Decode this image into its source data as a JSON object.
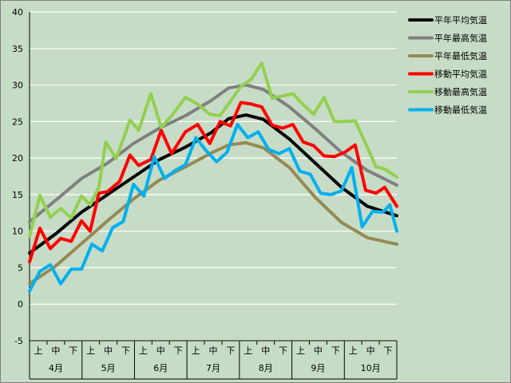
{
  "chart_data": {
    "type": "line",
    "title": "",
    "xlabel": "",
    "ylabel": "",
    "ylim": [
      -5,
      40
    ],
    "yticks": [
      -5,
      0,
      5,
      10,
      15,
      20,
      25,
      30,
      35,
      40
    ],
    "grid": "horizontal white gridlines",
    "legend_position": "right",
    "months": [
      "4月",
      "5月",
      "6月",
      "7月",
      "8月",
      "9月",
      "10月"
    ],
    "decades": [
      "上",
      "中",
      "下"
    ],
    "x_note": "x = day index from Apr 1 (0..212)",
    "series": [
      {
        "name": "平年平均気温",
        "color": "#000000",
        "points": [
          [
            0,
            7.0
          ],
          [
            15,
            9.6
          ],
          [
            30,
            12.6
          ],
          [
            45,
            15.0
          ],
          [
            60,
            17.4
          ],
          [
            75,
            19.8
          ],
          [
            90,
            21.5
          ],
          [
            105,
            23.5
          ],
          [
            115,
            25.4
          ],
          [
            125,
            25.9
          ],
          [
            135,
            25.3
          ],
          [
            150,
            22.6
          ],
          [
            165,
            19.3
          ],
          [
            180,
            16.0
          ],
          [
            195,
            13.4
          ],
          [
            212,
            12.1
          ]
        ]
      },
      {
        "name": "平年最高気温",
        "color": "#808080",
        "points": [
          [
            0,
            11.3
          ],
          [
            15,
            14.2
          ],
          [
            30,
            17.2
          ],
          [
            45,
            19.3
          ],
          [
            60,
            22.0
          ],
          [
            75,
            24.1
          ],
          [
            90,
            25.8
          ],
          [
            105,
            27.9
          ],
          [
            115,
            29.6
          ],
          [
            125,
            30.0
          ],
          [
            135,
            29.4
          ],
          [
            150,
            27.0
          ],
          [
            165,
            24.0
          ],
          [
            180,
            20.8
          ],
          [
            195,
            18.3
          ],
          [
            212,
            16.3
          ]
        ]
      },
      {
        "name": "平年最低気温",
        "color": "#948a54",
        "points": [
          [
            0,
            2.8
          ],
          [
            15,
            5.2
          ],
          [
            30,
            8.3
          ],
          [
            45,
            11.4
          ],
          [
            60,
            14.4
          ],
          [
            75,
            17.0
          ],
          [
            90,
            18.8
          ],
          [
            105,
            20.7
          ],
          [
            115,
            21.8
          ],
          [
            125,
            22.1
          ],
          [
            135,
            21.4
          ],
          [
            150,
            18.7
          ],
          [
            165,
            14.6
          ],
          [
            180,
            11.2
          ],
          [
            195,
            9.1
          ],
          [
            212,
            8.2
          ]
        ]
      },
      {
        "name": "移動平均気温",
        "color": "#ff0000",
        "points": [
          [
            0,
            5.8
          ],
          [
            6,
            10.4
          ],
          [
            12,
            7.6
          ],
          [
            18,
            9.0
          ],
          [
            24,
            8.6
          ],
          [
            30,
            11.4
          ],
          [
            35,
            10.0
          ],
          [
            40,
            15.2
          ],
          [
            45,
            15.4
          ],
          [
            52,
            16.8
          ],
          [
            58,
            20.4
          ],
          [
            63,
            19.0
          ],
          [
            70,
            19.8
          ],
          [
            76,
            23.8
          ],
          [
            82,
            20.6
          ],
          [
            90,
            23.6
          ],
          [
            97,
            24.6
          ],
          [
            104,
            22.0
          ],
          [
            110,
            25.0
          ],
          [
            116,
            24.4
          ],
          [
            122,
            27.6
          ],
          [
            128,
            27.4
          ],
          [
            134,
            27.0
          ],
          [
            140,
            24.5
          ],
          [
            146,
            24.1
          ],
          [
            152,
            24.6
          ],
          [
            158,
            22.2
          ],
          [
            164,
            21.7
          ],
          [
            170,
            20.3
          ],
          [
            176,
            20.2
          ],
          [
            182,
            20.8
          ],
          [
            188,
            21.8
          ],
          [
            194,
            15.6
          ],
          [
            200,
            15.2
          ],
          [
            205,
            16.0
          ],
          [
            212,
            13.4
          ]
        ]
      },
      {
        "name": "移動最高気温",
        "color": "#92d050",
        "points": [
          [
            0,
            9.3
          ],
          [
            6,
            14.9
          ],
          [
            12,
            11.9
          ],
          [
            18,
            13.1
          ],
          [
            24,
            11.8
          ],
          [
            30,
            14.8
          ],
          [
            35,
            13.6
          ],
          [
            40,
            16.0
          ],
          [
            44,
            22.2
          ],
          [
            50,
            19.9
          ],
          [
            58,
            25.2
          ],
          [
            63,
            23.8
          ],
          [
            70,
            28.8
          ],
          [
            76,
            24.2
          ],
          [
            82,
            25.8
          ],
          [
            90,
            28.3
          ],
          [
            97,
            27.4
          ],
          [
            104,
            26.0
          ],
          [
            110,
            25.8
          ],
          [
            116,
            27.8
          ],
          [
            122,
            29.8
          ],
          [
            128,
            30.8
          ],
          [
            134,
            33.0
          ],
          [
            140,
            28.2
          ],
          [
            146,
            28.5
          ],
          [
            152,
            28.8
          ],
          [
            158,
            27.3
          ],
          [
            164,
            26.0
          ],
          [
            170,
            28.3
          ],
          [
            176,
            25.0
          ],
          [
            182,
            25.0
          ],
          [
            188,
            25.1
          ],
          [
            194,
            22.0
          ],
          [
            200,
            18.8
          ],
          [
            205,
            18.5
          ],
          [
            212,
            17.4
          ]
        ]
      },
      {
        "name": "移動最低気温",
        "color": "#00b0f0",
        "points": [
          [
            0,
            1.8
          ],
          [
            6,
            4.5
          ],
          [
            12,
            5.4
          ],
          [
            18,
            2.8
          ],
          [
            24,
            4.8
          ],
          [
            30,
            4.8
          ],
          [
            36,
            8.2
          ],
          [
            42,
            7.3
          ],
          [
            48,
            10.5
          ],
          [
            54,
            11.3
          ],
          [
            60,
            16.4
          ],
          [
            66,
            14.8
          ],
          [
            72,
            20.2
          ],
          [
            78,
            17.2
          ],
          [
            84,
            18.3
          ],
          [
            90,
            19.1
          ],
          [
            96,
            22.8
          ],
          [
            102,
            21.0
          ],
          [
            108,
            19.5
          ],
          [
            114,
            20.8
          ],
          [
            120,
            24.6
          ],
          [
            126,
            22.8
          ],
          [
            132,
            23.6
          ],
          [
            138,
            21.2
          ],
          [
            144,
            20.6
          ],
          [
            150,
            21.3
          ],
          [
            156,
            18.2
          ],
          [
            162,
            17.8
          ],
          [
            168,
            15.2
          ],
          [
            174,
            15.0
          ],
          [
            180,
            15.5
          ],
          [
            186,
            18.7
          ],
          [
            192,
            10.6
          ],
          [
            198,
            12.7
          ],
          [
            204,
            12.6
          ],
          [
            208,
            13.6
          ],
          [
            212,
            10.0
          ]
        ]
      }
    ]
  }
}
